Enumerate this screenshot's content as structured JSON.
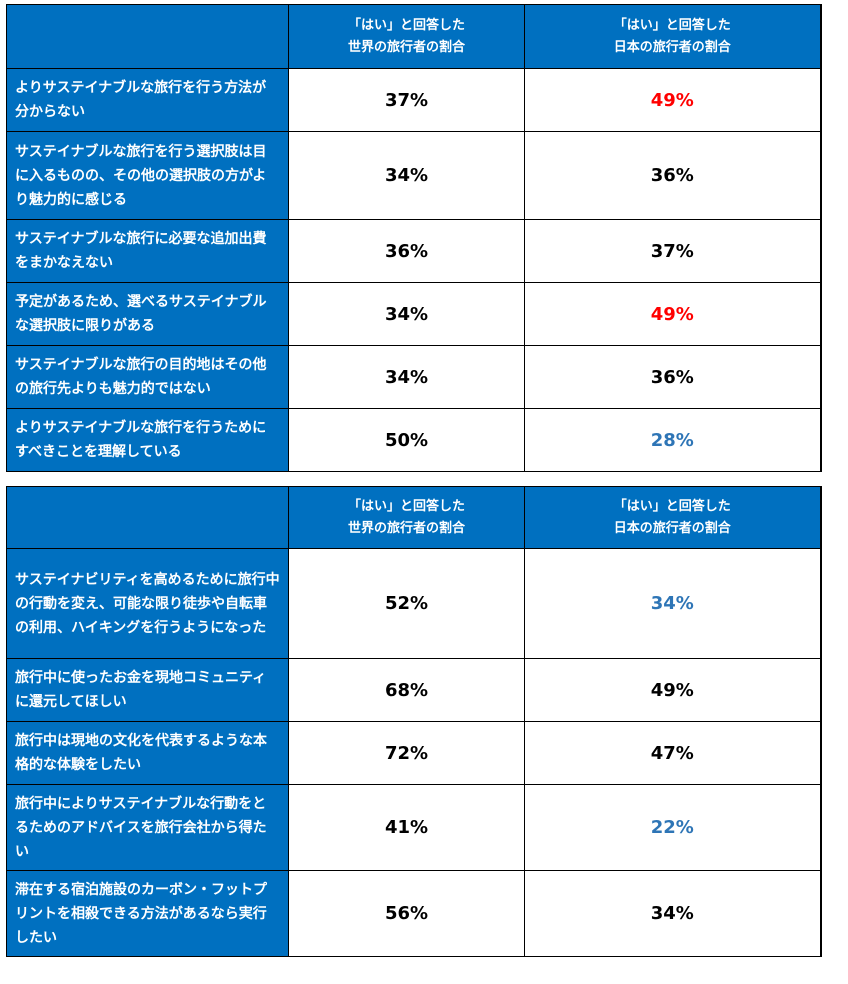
{
  "table1": {
    "header": {
      "world": [
        "「はい」と回答した",
        "世界の旅行者の割合"
      ],
      "japan": [
        "「はい」と回答した",
        "日本の旅行者の割合"
      ]
    },
    "rows": [
      {
        "question": "よりサステイナブルな旅行を行う方法が分からない",
        "world": "37%",
        "japan": "49%",
        "japan_color": "red"
      },
      {
        "question": "サステイナブルな旅行を行う選択肢は目に入るものの、その他の選択肢の方がより魅力的に感じる",
        "world": "34%",
        "japan": "36%",
        "japan_color": "black"
      },
      {
        "question": "サステイナブルな旅行に必要な追加出費をまかなえない",
        "world": "36%",
        "japan": "37%",
        "japan_color": "black"
      },
      {
        "question": "予定があるため、選べるサステイナブルな選択肢に限りがある",
        "world": "34%",
        "japan": "49%",
        "japan_color": "red"
      },
      {
        "question": "サステイナブルな旅行の目的地はその他の旅行先よりも魅力的ではない",
        "world": "34%",
        "japan": "36%",
        "japan_color": "black"
      },
      {
        "question": "よりサステイナブルな旅行を行うためにすべきことを理解している",
        "world": "50%",
        "japan": "28%",
        "japan_color": "blue"
      }
    ]
  },
  "table2": {
    "header": {
      "world": [
        "「はい」と回答した",
        "世界の旅行者の割合"
      ],
      "japan": [
        "「はい」と回答した",
        "日本の旅行者の割合"
      ]
    },
    "rows": [
      {
        "question": "サステイナビリティを高めるために旅行中の行動を変え、可能な限り徒歩や自転車の利用、ハイキングを行うようになった",
        "world": "52%",
        "japan": "34%",
        "japan_color": "blue"
      },
      {
        "question": "旅行中に使ったお金を現地コミュニティに還元してほしい",
        "world": "68%",
        "japan": "49%",
        "japan_color": "black"
      },
      {
        "question": "旅行中は現地の文化を代表するような本格的な体験をしたい",
        "world": "72%",
        "japan": "47%",
        "japan_color": "black"
      },
      {
        "question": "旅行中によりサステイナブルな行動をとるためのアドバイスを旅行会社から得たい",
        "world": "41%",
        "japan": "22%",
        "japan_color": "blue"
      },
      {
        "question": "滞在する宿泊施設のカーボン・フットプリントを相殺できる方法があるなら実行したい",
        "world": "56%",
        "japan": "34%",
        "japan_color": "black"
      }
    ]
  },
  "colors": {
    "header_blue": "#0070c0",
    "highlight_red": "#ff0000",
    "highlight_blue": "#2e75b6",
    "text_black": "#000000"
  }
}
